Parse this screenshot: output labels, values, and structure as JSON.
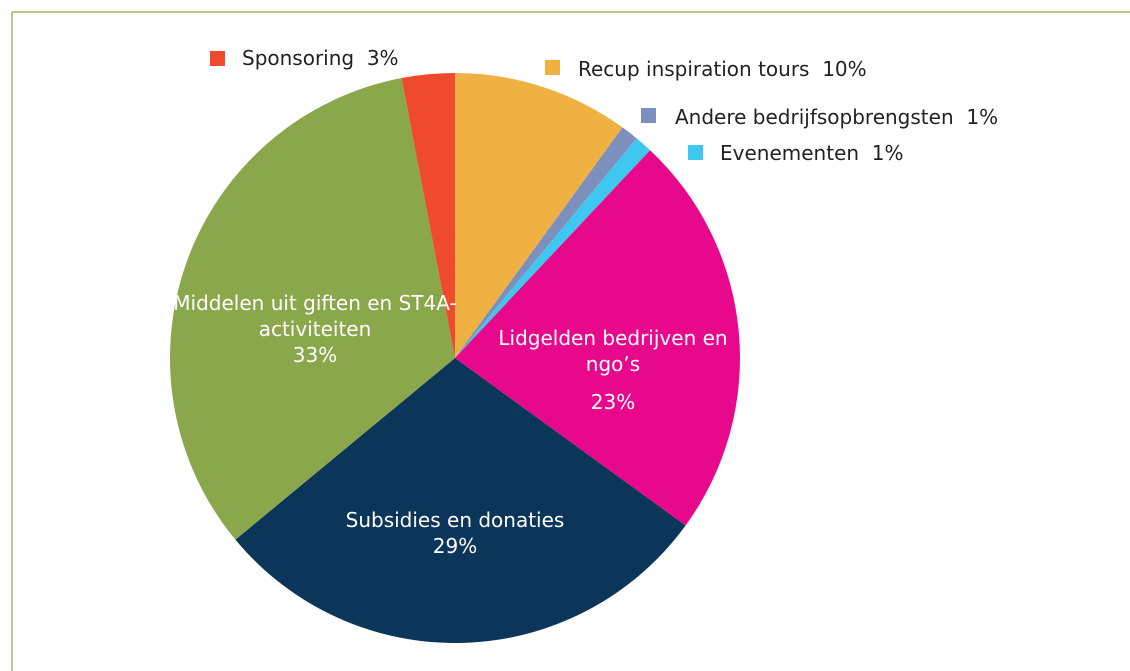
{
  "chart_data": {
    "type": "pie",
    "categories": [
      "Recup inspiration tours",
      "Andere bedrijfsopbrengsten",
      "Evenementen",
      "Lidgelden bedrijven en ngo’s",
      "Subsidies en donaties",
      "Middelen uit giften en ST4A-activiteiten",
      "Sponsoring"
    ],
    "values": [
      10,
      1,
      1,
      23,
      29,
      33,
      3
    ],
    "value_labels": [
      "10%",
      "1%",
      "1%",
      "23%",
      "29%",
      "33%",
      "3%"
    ],
    "colors": [
      "#f0b143",
      "#7d8fbd",
      "#3ec8f0",
      "#e8088b",
      "#0b3659",
      "#8aa74b",
      "#ef4a2e"
    ]
  }
}
